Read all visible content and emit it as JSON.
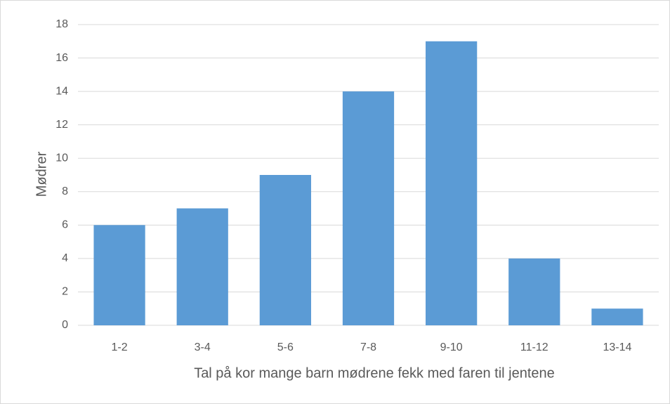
{
  "chart_data": {
    "type": "bar",
    "x_label": "Tal på kor mange barn mødrene fekk med faren til jentene",
    "y_label": "Mødrer",
    "categories": [
      "1-2",
      "3-4",
      "5-6",
      "7-8",
      "9-10",
      "11-12",
      "13-14"
    ],
    "values": [
      6,
      7,
      9,
      14,
      17,
      4,
      1
    ],
    "color": "#5b9bd5",
    "ylim": [
      0,
      18
    ],
    "yticks": [
      0,
      2,
      4,
      6,
      8,
      10,
      12,
      14,
      16,
      18
    ],
    "grid": true
  }
}
